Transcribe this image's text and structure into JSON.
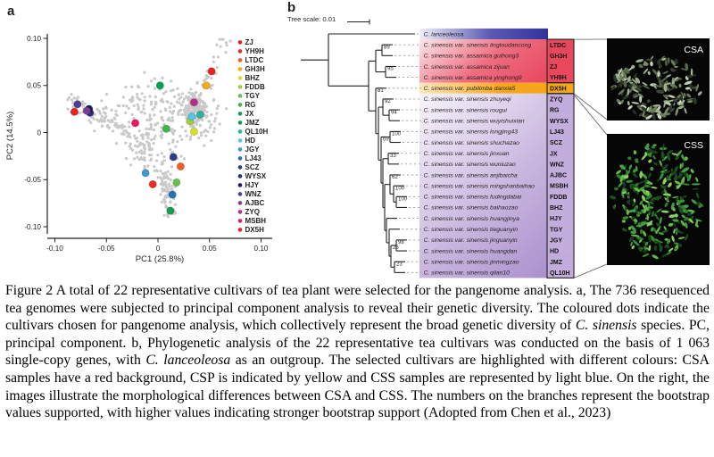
{
  "panel_a": {
    "label": "a",
    "chart_data": {
      "type": "scatter",
      "xlabel": "PC1 (25.8%)",
      "ylabel": "PC2 (14.5%)",
      "xlim": [
        -0.1,
        0.1
      ],
      "ylim": [
        -0.1,
        0.1
      ],
      "xtick_labels": [
        "-0.10",
        "-0.05",
        "0",
        "0.05",
        "0.10"
      ],
      "xtick_values": [
        -0.1,
        -0.05,
        0,
        0.05,
        0.1
      ],
      "ytick_labels": [
        "0.10",
        "0.05",
        "0",
        "-0.05",
        "-0.10"
      ],
      "ytick_values": [
        0.1,
        0.05,
        0,
        -0.05,
        -0.1
      ],
      "grid": false,
      "legend_position": "right",
      "background_point_color": "#c9c9c9",
      "axis_color": "#231f20",
      "legend": [
        {
          "label": "ZJ",
          "color": "#e8231a"
        },
        {
          "label": "YH9H",
          "color": "#ed2c23"
        },
        {
          "label": "LTDC",
          "color": "#f15e22"
        },
        {
          "label": "GH3H",
          "color": "#f8a81c"
        },
        {
          "label": "BHZ",
          "color": "#d6df27"
        },
        {
          "label": "FDDB",
          "color": "#a5cd39"
        },
        {
          "label": "TGY",
          "color": "#6abf4b"
        },
        {
          "label": "RG",
          "color": "#3cb54b"
        },
        {
          "label": "JX",
          "color": "#14a04b"
        },
        {
          "label": "JMZ",
          "color": "#00a553"
        },
        {
          "label": "QL10H",
          "color": "#2ab39b"
        },
        {
          "label": "HD",
          "color": "#54c6e8"
        },
        {
          "label": "JGY",
          "color": "#3d9ad1"
        },
        {
          "label": "LJ43",
          "color": "#2272b9"
        },
        {
          "label": "SCZ",
          "color": "#2b3c8f"
        },
        {
          "label": "WYSX",
          "color": "#2a2f77"
        },
        {
          "label": "HJY",
          "color": "#201c63"
        },
        {
          "label": "WNZ",
          "color": "#4b3f94"
        },
        {
          "label": "AJBC",
          "color": "#7c3d97"
        },
        {
          "label": "ZYQ",
          "color": "#bc2b8c"
        },
        {
          "label": "MSBH",
          "color": "#eb1964"
        },
        {
          "label": "DX5H",
          "color": "#e8211d"
        }
      ],
      "cultivar_points": [
        {
          "label": "ZJ",
          "x": 0.052,
          "y": 0.065
        },
        {
          "label": "YH9H",
          "x": -0.005,
          "y": -0.055
        },
        {
          "label": "LTDC",
          "x": 0.022,
          "y": -0.036
        },
        {
          "label": "GH3H",
          "x": 0.047,
          "y": 0.05
        },
        {
          "label": "BHZ",
          "x": 0.035,
          "y": 0.001
        },
        {
          "label": "FDDB",
          "x": 0.031,
          "y": 0.012
        },
        {
          "label": "TGY",
          "x": 0.018,
          "y": -0.053
        },
        {
          "label": "RG",
          "x": 0.008,
          "y": 0.004
        },
        {
          "label": "JX",
          "x": 0.012,
          "y": -0.083
        },
        {
          "label": "JMZ",
          "x": 0.002,
          "y": 0.05
        },
        {
          "label": "QL10H",
          "x": 0.041,
          "y": 0.019
        },
        {
          "label": "HD",
          "x": 0.033,
          "y": 0.017
        },
        {
          "label": "JGY",
          "x": -0.012,
          "y": -0.043
        },
        {
          "label": "LJ43",
          "x": 0.014,
          "y": -0.066
        },
        {
          "label": "SCZ",
          "x": 0.015,
          "y": -0.026
        },
        {
          "label": "WYSX",
          "x": -0.066,
          "y": 0.021
        },
        {
          "label": "HJY",
          "x": -0.067,
          "y": 0.025
        },
        {
          "label": "WNZ",
          "x": -0.078,
          "y": 0.03
        },
        {
          "label": "AJBC",
          "x": -0.069,
          "y": 0.023
        },
        {
          "label": "ZYQ",
          "x": 0.035,
          "y": 0.032
        },
        {
          "label": "MSBH",
          "x": -0.022,
          "y": 0.01
        },
        {
          "label": "DX5H",
          "x": -0.081,
          "y": 0.022
        }
      ],
      "background_clusters": [
        {
          "type": "line",
          "from": [
            -0.086,
            0.033
          ],
          "to": [
            -0.032,
            0.003
          ],
          "n": 85,
          "jx": 0.004,
          "jy": 0.005
        },
        {
          "type": "line",
          "from": [
            -0.032,
            0.003
          ],
          "to": [
            0.003,
            -0.038
          ],
          "n": 55,
          "jx": 0.006,
          "jy": 0.006
        },
        {
          "type": "line",
          "from": [
            0.004,
            -0.038
          ],
          "to": [
            0.012,
            -0.088
          ],
          "n": 80,
          "jx": 0.0035,
          "jy": 0.005
        },
        {
          "type": "blob",
          "center": [
            0.035,
            0.027
          ],
          "sx": 0.0055,
          "sy": 0.007,
          "n": 150
        },
        {
          "type": "line",
          "from": [
            0.044,
            0.042
          ],
          "to": [
            0.064,
            0.097
          ],
          "n": 32,
          "jx": 0.004,
          "jy": 0.004
        },
        {
          "type": "blob",
          "center": [
            0.0,
            0.005
          ],
          "sx": 0.02,
          "sy": 0.018,
          "n": 130
        },
        {
          "type": "blob",
          "center": [
            0.02,
            0.028
          ],
          "sx": 0.012,
          "sy": 0.012,
          "n": 45
        },
        {
          "type": "line",
          "from": [
            -0.01,
            0.047
          ],
          "to": [
            -0.045,
            0.02
          ],
          "n": 25,
          "jx": 0.006,
          "jy": 0.006
        },
        {
          "type": "blob",
          "center": [
            0.05,
            0.012
          ],
          "sx": 0.008,
          "sy": 0.01,
          "n": 35
        },
        {
          "type": "blob",
          "center": [
            -0.005,
            0.045
          ],
          "sx": 0.012,
          "sy": 0.012,
          "n": 25
        }
      ]
    }
  },
  "panel_b": {
    "label": "b",
    "tree_scale_label": "Tree scale: 0.01",
    "groups": {
      "outgroup": {
        "band": [
          "#efeef8",
          "#5c5ab4",
          "#31339c"
        ],
        "cell": null
      },
      "csa": {
        "band": [
          "#fbe7e9",
          "#ee6d80",
          "#e84a61"
        ],
        "cell": "#e8475c"
      },
      "csp": {
        "band": [
          "#fde7bc",
          "#f6a61b",
          "#f6a61b"
        ],
        "cell": "#f6a61b"
      },
      "css": {
        "band": [
          "#f8f5fc",
          "#cbb8e0",
          "#a98fcc"
        ],
        "cell": "#c3addc"
      }
    },
    "rows": [
      {
        "name": "C. lanceoleosa",
        "code": null,
        "group": "outgroup"
      },
      {
        "name": "C. sinensis var. sinensis lingtoudancong",
        "code": "LTDC",
        "group": "csa"
      },
      {
        "name": "C. sinensis var. assamica guihong3",
        "code": "GH3H",
        "group": "csa"
      },
      {
        "name": "C. sinensis var. assamica zijuan",
        "code": "ZJ",
        "group": "csa"
      },
      {
        "name": "C. sinensis var. assamica yinghong9",
        "code": "YH9H",
        "group": "csa"
      },
      {
        "name": "C. sinensis var. pubilimba danxia5",
        "code": "DX5H",
        "group": "csp"
      },
      {
        "name": "C. sinensis var. sinensis zhuyeqi",
        "code": "ZYQ",
        "group": "css"
      },
      {
        "name": "C. sinensis var. sinensis rougui",
        "code": "RG",
        "group": "css"
      },
      {
        "name": "C. sinensis var. sinensis wuyishuixian",
        "code": "WYSX",
        "group": "css"
      },
      {
        "name": "C. sinensis var. sinensis longjing43",
        "code": "LJ43",
        "group": "css"
      },
      {
        "name": "C. sinensis var. sinensis shuchazao",
        "code": "SCZ",
        "group": "css"
      },
      {
        "name": "C. sinensis var. sinensis jinxuan",
        "code": "JX",
        "group": "css"
      },
      {
        "name": "C. sinensis var. sinensis wuniuzao",
        "code": "WNZ",
        "group": "css"
      },
      {
        "name": "C. sinensis var. sinensis anjibaicha",
        "code": "AJBC",
        "group": "css"
      },
      {
        "name": "C. sinensis var. sinensis mingshanbaihao",
        "code": "MSBH",
        "group": "css"
      },
      {
        "name": "C. sinensis var. sinensis fudingdabai",
        "code": "FDDB",
        "group": "css"
      },
      {
        "name": "C. sinensis var. sinensis baihaozao",
        "code": "BHZ",
        "group": "css"
      },
      {
        "name": "C. sinensis var. sinensis huangjinya",
        "code": "HJY",
        "group": "css"
      },
      {
        "name": "C. sinensis var. sinensis tieguanyin",
        "code": "TGY",
        "group": "css"
      },
      {
        "name": "C. sinensis var. sinensis jinguanyin",
        "code": "JGY",
        "group": "css"
      },
      {
        "name": "C. sinensis var. sinensis huangdan",
        "code": "HD",
        "group": "css"
      },
      {
        "name": "C. sinensis var. sinensis jinmingzao",
        "code": "JMZ",
        "group": "css"
      },
      {
        "name": "C. sinensis var. sinensis qilan10",
        "code": "QL10H",
        "group": "css"
      }
    ],
    "topology": {
      "x": 48,
      "children": [
        {
          "leaf": 0,
          "tip": 145
        },
        {
          "x": 93,
          "children": [
            {
              "x": 101,
              "children": [
                {
                  "x": 108,
                  "bs": "89",
                  "children": [
                    {
                      "leaf": 1
                    },
                    {
                      "leaf": 2
                    }
                  ]
                },
                {
                  "x": 112,
                  "bs": "95",
                  "children": [
                    {
                      "leaf": 3
                    },
                    {
                      "leaf": 4
                    }
                  ]
                }
              ]
            },
            {
              "x": 101,
              "bs": "81",
              "children": [
                {
                  "leaf": 5
                },
                {
                  "x": 104,
                  "children": [
                    {
                      "x": 109,
                      "bs": "92",
                      "children": [
                        {
                          "leaf": 6
                        },
                        {
                          "x": 116,
                          "bs": "94",
                          "children": [
                            {
                              "leaf": 7
                            },
                            {
                              "leaf": 8
                            }
                          ]
                        }
                      ]
                    },
                    {
                      "x": 107,
                      "bs": "69",
                      "children": [
                        {
                          "x": 117,
                          "bs": "100",
                          "children": [
                            {
                              "leaf": 9
                            },
                            {
                              "leaf": 10
                            }
                          ]
                        },
                        {
                          "x": 109,
                          "children": [
                            {
                              "x": 115,
                              "bs": "33",
                              "children": [
                                {
                                  "leaf": 11
                                },
                                {
                                  "leaf": 12
                                }
                              ]
                            },
                            {
                              "x": 111,
                              "children": [
                                {
                                  "x": 117,
                                  "bs": "62",
                                  "children": [
                                    {
                                      "leaf": 13
                                    },
                                    {
                                      "x": 121,
                                      "bs": "100",
                                      "children": [
                                        {
                                          "leaf": 14
                                        },
                                        {
                                          "x": 124,
                                          "bs": "100",
                                          "children": [
                                            {
                                              "leaf": 15
                                            },
                                            {
                                              "leaf": 16
                                            }
                                          ]
                                        }
                                      ]
                                    }
                                  ]
                                },
                                {
                                  "x": 113,
                                  "children": [
                                    {
                                      "leaf": 17
                                    },
                                    {
                                      "x": 116,
                                      "children": [
                                        {
                                          "leaf": 18
                                        },
                                        {
                                          "x": 118,
                                          "bs": "26",
                                          "children": [
                                            {
                                              "x": 124,
                                              "bs": "98",
                                              "children": [
                                                {
                                                  "leaf": 19
                                                },
                                                {
                                                  "leaf": 20
                                                }
                                              ]
                                            },
                                            {
                                              "x": 122,
                                              "bs": "23",
                                              "children": [
                                                {
                                                  "leaf": 21
                                                },
                                                {
                                                  "leaf": 22
                                                }
                                              ]
                                            }
                                          ]
                                        }
                                      ]
                                    }
                                  ]
                                }
                              ]
                            }
                          ]
                        }
                      ]
                    }
                  ]
                }
              ]
            }
          ]
        }
      ]
    },
    "photos": [
      {
        "label": "CSA",
        "leaf_colors": [
          "#3a4733",
          "#57684a",
          "#7b8f68",
          "#9fb08c",
          "#c7d2bb",
          "#2c3627",
          "#6b7d58"
        ]
      },
      {
        "label": "CSS",
        "leaf_colors": [
          "#1e4d1e",
          "#2f7d2f",
          "#43a047",
          "#63bb45",
          "#8bd063",
          "#174018",
          "#35922f"
        ]
      }
    ]
  },
  "caption": {
    "segments": [
      {
        "text": "Figure 2 A total of 22 representative cultivars of tea plant were selected for the pangenome analysis. a, The 736 resequenced tea genomes were subjected to principal component analysis to reveal their genetic diversity. The coloured dots indicate the cultivars chosen for pangenome analysis, which collectively represent the broad genetic diversity of ",
        "italic": false
      },
      {
        "text": "C. sinensis",
        "italic": true
      },
      {
        "text": " species. PC, principal component. b, Phylogenetic analysis of the 22 representative tea cultivars was conducted on the basis of 1 063 single-copy genes, with ",
        "italic": false
      },
      {
        "text": "C. lanceoleosa",
        "italic": true
      },
      {
        "text": " as an outgroup. The selected cultivars are highlighted with different colours: CSA samples have a red background, CSP is indicated by yellow and CSS samples are represented by light blue. On the right, the images illustrate the morphological differences between CSA and CSS. The numbers on the branches represent the bootstrap values supported, with higher values indicating stronger bootstrap support (Adopted from Chen et al., 2023)",
        "italic": false
      }
    ]
  }
}
